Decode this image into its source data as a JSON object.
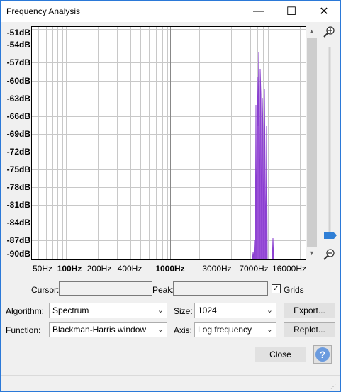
{
  "window": {
    "title": "Frequency Analysis",
    "min_glyph": "—",
    "max_glyph": "☐",
    "close_glyph": "✕"
  },
  "yaxis": {
    "labels": [
      "-51dB",
      "-54dB",
      "-57dB",
      "-60dB",
      "-63dB",
      "-66dB",
      "-69dB",
      "-72dB",
      "-75dB",
      "-78dB",
      "-81dB",
      "-84dB",
      "-87dB",
      "-90dB"
    ]
  },
  "xaxis": {
    "labels": [
      {
        "text": "50Hz",
        "major": false
      },
      {
        "text": "100Hz",
        "major": true
      },
      {
        "text": "200Hz",
        "major": false
      },
      {
        "text": "400Hz",
        "major": false
      },
      {
        "text": "1000Hz",
        "major": true
      },
      {
        "text": "3000Hz",
        "major": false
      },
      {
        "text": "7000Hz",
        "major": false
      },
      {
        "text": "16000Hz",
        "major": false
      }
    ]
  },
  "controls": {
    "cursor_label": "Cursor:",
    "cursor_value": "",
    "peak_label": "Peak:",
    "peak_value": "",
    "grids_label": "Grids",
    "grids_checked": true,
    "algorithm_label": "Algorithm:",
    "algorithm_value": "Spectrum",
    "size_label": "Size:",
    "size_value": "1024",
    "export_label": "Export...",
    "function_label": "Function:",
    "function_value": "Blackman-Harris window",
    "axis_label": "Axis:",
    "axis_value": "Log frequency",
    "replot_label": "Replot...",
    "close_label": "Close",
    "help_glyph": "?"
  },
  "colors": {
    "spectrum": "#9a50d8",
    "accent": "#2f7fd6",
    "help_bg": "#6b9bde"
  },
  "icons": {
    "zoom_in": "zoom-in-icon",
    "zoom_out": "zoom-out-icon"
  }
}
